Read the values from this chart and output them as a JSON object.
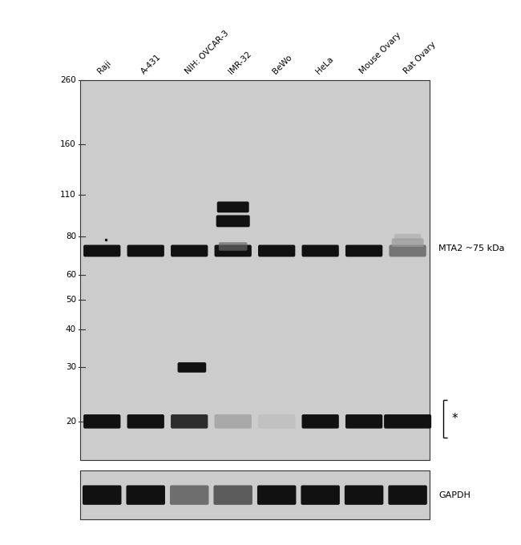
{
  "figsize": [
    6.5,
    6.8
  ],
  "dpi": 100,
  "bg_color": "#ffffff",
  "panel_bg": "#cccccc",
  "panel_border": "#333333",
  "lane_labels": [
    "Raji",
    "A-431",
    "NIH: OVCAR-3",
    "IMR-32",
    "BeWo",
    "HeLa",
    "Mouse Ovary",
    "Rat Ovary"
  ],
  "mw_labels": [
    "260",
    "160",
    "110",
    "80",
    "60",
    "50",
    "40",
    "30",
    "20"
  ],
  "right_label_mta2": "MTA2 ~75 kDa",
  "right_label_gapdh": "GAPDH",
  "asterisk_label": "*",
  "n_lanes": 8,
  "band_color_dark": "#111111",
  "band_color_mid": "#666666",
  "band_color_light": "#999999",
  "band_color_vlight": "#bbbbbb"
}
